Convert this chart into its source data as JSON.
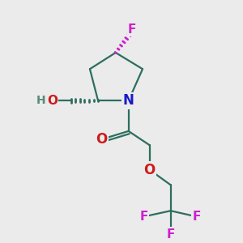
{
  "bg_color": "#ebebeb",
  "bond_color": "#2d6e5e",
  "N_color": "#1a1acc",
  "O_color": "#cc1a1a",
  "F_color": "#cc22cc",
  "HO_color": "#5a8a7a",
  "line_width": 1.6,
  "figsize": [
    3.0,
    3.0
  ],
  "dpi": 100,
  "xlim": [
    0,
    10
  ],
  "ylim": [
    0,
    10
  ]
}
